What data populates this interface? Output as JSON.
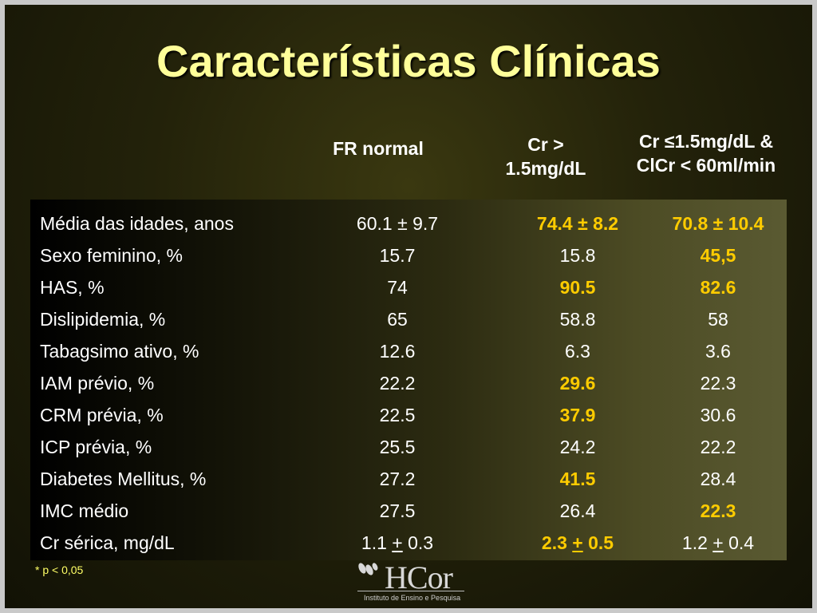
{
  "title": "Características Clínicas",
  "columns": {
    "c1": "FR normal",
    "c2_line1": "Cr >",
    "c2_line2": "1.5mg/dL",
    "c3_line1": "Cr ≤1.5mg/dL &",
    "c3_line2": "ClCr < 60ml/min"
  },
  "rows": [
    {
      "label": "Média das idades, anos",
      "c1": "60.1 ± 9.7",
      "c2": "74.4 ± 8.2",
      "c3": "70.8 ± 10.4"
    },
    {
      "label": "Sexo feminino, %",
      "c1": "15.7",
      "c2": "15.8",
      "c3": "45,5"
    },
    {
      "label": "HAS, %",
      "c1": "74",
      "c2": "90.5",
      "c3": "82.6"
    },
    {
      "label": "Dislipidemia, %",
      "c1": "65",
      "c2": "58.8",
      "c3": "58"
    },
    {
      "label": "Tabagsimo ativo, %",
      "c1": "12.6",
      "c2": "6.3",
      "c3": "3.6"
    },
    {
      "label": "IAM prévio, %",
      "c1": "22.2",
      "c2": "29.6",
      "c3": "22.3"
    },
    {
      "label": "CRM prévia, %",
      "c1": "22.5",
      "c2": "37.9",
      "c3": "30.6"
    },
    {
      "label": "ICP prévia, %",
      "c1": "25.5",
      "c2": "24.2",
      "c3": "22.2"
    },
    {
      "label": "Diabetes Mellitus, %",
      "c1": "27.2",
      "c2": "41.5",
      "c3": "28.4"
    },
    {
      "label": "IMC médio",
      "c1": "27.5",
      "c2": "26.4",
      "c3": "22.3"
    },
    {
      "label": "Cr sérica, mg/dL",
      "c1_a": "1.1",
      "c1_pm": "+",
      "c1_b": "0.3",
      "c2_a": "2.3",
      "c2_pm": "+",
      "c2_b": "0.5",
      "c3_a": "1.2",
      "c3_pm": "+",
      "c3_b": "0.4"
    }
  ],
  "footnote": "*  p < 0,05",
  "logo": {
    "text": "HCor",
    "subtitle": "Instituto de Ensino e Pesquisa"
  },
  "colors": {
    "title": "#ffff99",
    "highlight": "#ffcc00",
    "footnote": "#ffff66"
  }
}
